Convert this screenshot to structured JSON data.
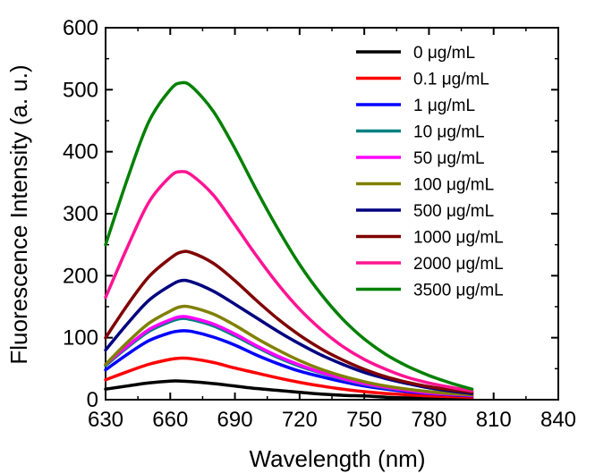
{
  "chart_data": {
    "type": "line",
    "title": "",
    "xlabel": "Wavelength (nm)",
    "ylabel": "Fluorescence Intensity (a. u.)",
    "xlim": [
      630,
      840
    ],
    "ylim": [
      0,
      600
    ],
    "xticks": [
      630,
      660,
      690,
      720,
      750,
      780,
      810,
      840
    ],
    "yticks": [
      0,
      100,
      200,
      300,
      400,
      500,
      600
    ],
    "grid": false,
    "legend_position": "top-right",
    "series": [
      {
        "name": "0 μg/mL",
        "color": "#000000",
        "x": [
          630,
          640,
          650,
          660,
          665,
          670,
          680,
          690,
          700,
          710,
          720,
          730,
          740,
          750,
          760,
          770,
          780,
          790,
          800
        ],
        "y": [
          17,
          22,
          27,
          30,
          30,
          29,
          26,
          22,
          18,
          15,
          12,
          9,
          7,
          6,
          4,
          3,
          3,
          2,
          2
        ]
      },
      {
        "name": "0.1 μg/mL",
        "color": "#ff0000",
        "x": [
          630,
          640,
          650,
          660,
          665,
          670,
          680,
          690,
          700,
          710,
          720,
          730,
          740,
          750,
          760,
          770,
          780,
          790,
          800
        ],
        "y": [
          32,
          45,
          57,
          65,
          67,
          66,
          60,
          51,
          43,
          35,
          28,
          22,
          17,
          13,
          10,
          8,
          6,
          5,
          4
        ]
      },
      {
        "name": "1 μg/mL",
        "color": "#0000ff",
        "x": [
          630,
          640,
          650,
          660,
          665,
          670,
          680,
          690,
          700,
          710,
          720,
          730,
          740,
          750,
          760,
          770,
          780,
          790,
          800
        ],
        "y": [
          48,
          73,
          95,
          108,
          111,
          110,
          101,
          88,
          72,
          58,
          46,
          37,
          29,
          22,
          17,
          13,
          10,
          8,
          6
        ]
      },
      {
        "name": "10 μg/mL",
        "color": "#008080",
        "x": [
          630,
          640,
          650,
          660,
          665,
          670,
          680,
          690,
          700,
          710,
          720,
          730,
          740,
          750,
          760,
          770,
          780,
          790,
          800
        ],
        "y": [
          55,
          84,
          110,
          126,
          131,
          129,
          119,
          103,
          85,
          68,
          54,
          43,
          33,
          25,
          19,
          15,
          11,
          9,
          7
        ]
      },
      {
        "name": "50 μg/mL",
        "color": "#ff00ff",
        "x": [
          630,
          640,
          650,
          660,
          665,
          670,
          680,
          690,
          700,
          710,
          720,
          730,
          740,
          750,
          760,
          770,
          780,
          790,
          800
        ],
        "y": [
          57,
          86,
          113,
          129,
          134,
          132,
          122,
          106,
          87,
          70,
          56,
          44,
          34,
          26,
          20,
          15,
          11,
          9,
          7
        ]
      },
      {
        "name": "100 μg/mL",
        "color": "#808000",
        "x": [
          630,
          640,
          650,
          660,
          665,
          670,
          680,
          690,
          700,
          710,
          720,
          730,
          740,
          750,
          760,
          770,
          780,
          790,
          800
        ],
        "y": [
          57,
          92,
          123,
          143,
          150,
          149,
          138,
          120,
          99,
          80,
          63,
          49,
          38,
          29,
          22,
          17,
          13,
          10,
          8
        ]
      },
      {
        "name": "500 μg/mL",
        "color": "#000080",
        "x": [
          630,
          640,
          650,
          660,
          665,
          670,
          680,
          690,
          700,
          710,
          720,
          730,
          740,
          750,
          760,
          770,
          780,
          790,
          800
        ],
        "y": [
          80,
          122,
          160,
          184,
          192,
          190,
          175,
          154,
          132,
          110,
          90,
          72,
          57,
          44,
          34,
          26,
          19,
          14,
          10
        ]
      },
      {
        "name": "1000 μg/mL",
        "color": "#800000",
        "x": [
          630,
          640,
          650,
          660,
          665,
          670,
          680,
          690,
          700,
          710,
          720,
          730,
          740,
          750,
          760,
          770,
          780,
          790,
          800
        ],
        "y": [
          100,
          152,
          198,
          228,
          238,
          237,
          220,
          192,
          160,
          130,
          104,
          82,
          64,
          49,
          37,
          28,
          21,
          16,
          12
        ]
      },
      {
        "name": "2000 μg/mL",
        "color": "#ff1493",
        "x": [
          630,
          640,
          650,
          660,
          665,
          670,
          680,
          690,
          700,
          710,
          720,
          730,
          740,
          750,
          760,
          770,
          780,
          790,
          800
        ],
        "y": [
          165,
          245,
          318,
          360,
          368,
          362,
          330,
          282,
          232,
          186,
          146,
          113,
          86,
          65,
          49,
          36,
          27,
          20,
          14
        ]
      },
      {
        "name": "3500 μg/mL",
        "color": "#008000",
        "x": [
          630,
          640,
          650,
          660,
          665,
          670,
          680,
          690,
          700,
          710,
          720,
          730,
          740,
          750,
          760,
          770,
          780,
          790,
          800
        ],
        "y": [
          250,
          355,
          448,
          500,
          511,
          505,
          465,
          405,
          338,
          275,
          218,
          170,
          130,
          98,
          73,
          54,
          39,
          27,
          17
        ]
      }
    ]
  }
}
